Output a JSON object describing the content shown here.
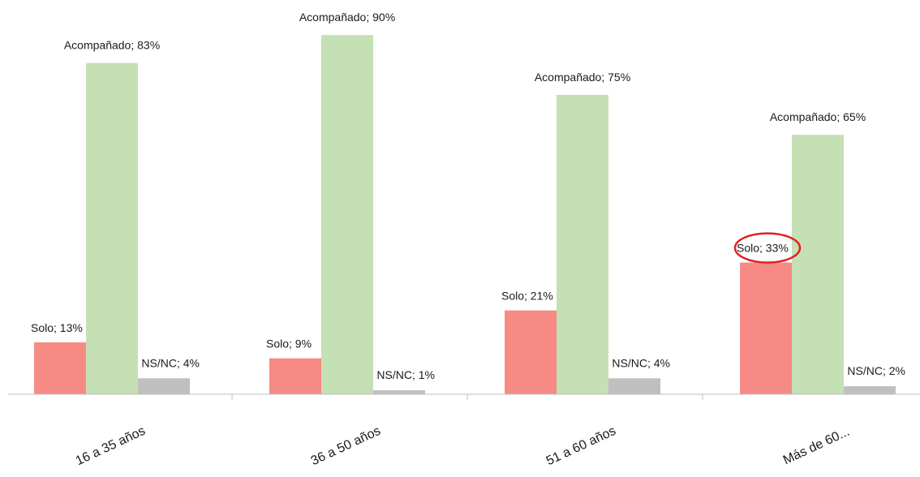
{
  "chart_data": {
    "type": "bar",
    "categories": [
      "16 a 35 años",
      "36 a 50 años",
      "51 a 60 años",
      "Más de 60..."
    ],
    "series": [
      {
        "name": "Solo",
        "values": [
          13,
          9,
          21,
          33
        ],
        "color": "#f68b85",
        "labels": [
          "Solo; 13%",
          "Solo; 9%",
          "Solo; 21%",
          "Solo; 33%"
        ]
      },
      {
        "name": "Acompañado",
        "values": [
          83,
          90,
          75,
          65
        ],
        "color": "#c5e0b4",
        "labels": [
          "Acompañado; 83%",
          "Acompañado; 90%",
          "Acompañado; 75%",
          "Acompañado; 65%"
        ]
      },
      {
        "name": "NS/NC",
        "values": [
          4,
          1,
          4,
          2
        ],
        "color": "#bfbfbf",
        "labels": [
          "NS/NC; 4%",
          "NS/NC; 1%",
          "NS/NC; 4%",
          "NS/NC; 2%"
        ]
      }
    ],
    "unit": "%",
    "ylim": [
      0,
      100
    ],
    "grid": false,
    "legend": "none",
    "annotations": [
      {
        "type": "ellipse-highlight",
        "target": "Solo; 33%",
        "color": "#e02020"
      }
    ],
    "axis_color": "#bfbfbf"
  }
}
